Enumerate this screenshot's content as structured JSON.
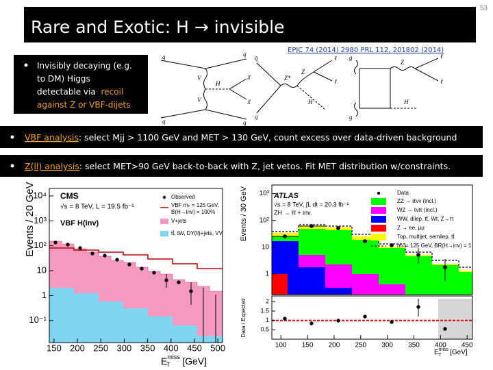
{
  "slide_number": "53",
  "title": "Rare and Exotic:  H → invisible",
  "references": "EPJC 74 (2014) 2980  PRL 112, 201802 (2014)",
  "intro_bullet": {
    "text": [
      "Invisibly decaying (e.g.",
      "to DM) Higgs",
      "detectable via"
    ],
    "highlight": [
      "recoil",
      "against Z or VBF-dijets"
    ]
  },
  "bullets": [
    {
      "label": "VBF analysis",
      "text": ":  select Mjj > 1100 GeV and MET > 130 GeV, count excess over data-driven background"
    },
    {
      "label": "Z(ll) analysis",
      "text": ":  select MET>90 GeV back-to-back with Z, jet vetos. Fit MET distribution w/constraints."
    }
  ],
  "feynman_labels": [
    "q",
    "q",
    "q",
    "q",
    "V",
    "V",
    "H",
    "χ",
    "χ",
    "q̄",
    "q",
    "Z*",
    "Z",
    "H",
    "ℓ",
    "ℓ",
    "g",
    "g",
    "Z",
    "H",
    "ℓ",
    "ℓ"
  ],
  "cms_plot": {
    "experiment": "CMS",
    "energy": "√s = 8 TeV, L = 19.5 fb⁻¹",
    "channel": "VBF H(inv)",
    "legend": [
      "Observed",
      "VBF mₕ = 125 GeV,",
      "B(H→inv) = 100%",
      "V+jets",
      "tt̄, tW, DY(ll)+jets, VV"
    ],
    "y_label": "Events / 20 GeV",
    "x_label": {
      "base": "E",
      "sub": "T",
      "sup": "miss",
      "unit": " [GeV]"
    },
    "log_y": true,
    "ylim": [
      0.013,
      20000
    ],
    "yticks": [
      {
        "value": 0.1,
        "label": "10⁻¹"
      },
      1,
      10,
      {
        "value": 100,
        "label": "10²"
      },
      {
        "value": 1000,
        "label": "10³"
      },
      {
        "value": 10000,
        "label": "10⁴"
      }
    ],
    "xlim": [
      140,
      510
    ],
    "xticks": [
      150,
      200,
      250,
      300,
      350,
      400,
      450,
      500
    ]
  },
  "atlas_plot": {
    "experiment": "ATLAS",
    "energy": "√s = 8 TeV, ∫L dt = 20.3 fb⁻¹",
    "channel": "ZH → ℓℓ + inv.",
    "legend": [
      "Data",
      "ZZ → ℓℓνν (incl.)",
      "WZ → ℓνℓℓ (incl.)",
      "WW, dilep. tt̄, Wt, Z→ττ",
      "Z → ee, μμ",
      "Top, multijet, semilep. tt̄",
      "mₕ = 125 GeV, BR(H→inv) = 1"
    ],
    "y_label": "Events / 30 GeV",
    "ratio_label": "Data / Expected",
    "x_label": {
      "base": "E",
      "sub": "T",
      "sup": "miss",
      "unit": " [GeV]"
    },
    "log_y": true,
    "ylim": [
      0.17,
      2100
    ],
    "yticks": [
      1,
      10,
      {
        "value": 100,
        "label": "10²"
      },
      {
        "value": 1000,
        "label": "10³"
      }
    ],
    "ratio_ylim": [
      0,
      2.3
    ],
    "ratio_yticks": [
      0.5,
      1,
      1.5,
      2
    ],
    "xlim": [
      83,
      460
    ],
    "xticks": [
      100,
      150,
      200,
      250,
      300,
      350,
      400,
      450
    ]
  }
}
